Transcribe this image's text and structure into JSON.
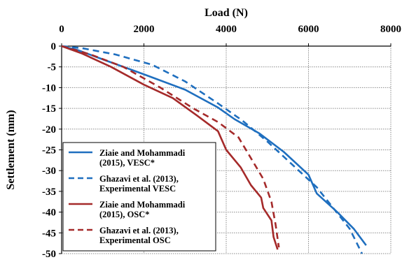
{
  "chart_data": {
    "type": "line",
    "xlabel": "Load (N)",
    "ylabel": "Settlement (mm)",
    "xlim": [
      0,
      8000
    ],
    "ylim": [
      -50,
      0
    ],
    "x_axis_position": "top",
    "grid": true,
    "legend_position": "bottom-left",
    "x_ticks": [
      "0",
      "2000",
      "4000",
      "6000",
      "8000"
    ],
    "y_ticks": [
      "0",
      "-5",
      "-10",
      "-15",
      "-20",
      "-25",
      "-30",
      "-35",
      "-40",
      "-45",
      "-50"
    ],
    "series": [
      {
        "name": [
          "Ziaie and Mohammadi",
          "(2015), VESC*"
        ],
        "color": "#1f6fbf",
        "dash": "solid",
        "points": [
          [
            0,
            0
          ],
          [
            400,
            -1
          ],
          [
            1000,
            -3.2
          ],
          [
            2000,
            -6.8
          ],
          [
            3000,
            -10.5
          ],
          [
            3800,
            -14.8
          ],
          [
            4200,
            -17.6
          ],
          [
            4800,
            -21
          ],
          [
            5400,
            -25.5
          ],
          [
            6000,
            -31
          ],
          [
            6200,
            -35.5
          ],
          [
            6700,
            -40
          ],
          [
            7100,
            -44
          ],
          [
            7400,
            -48
          ]
        ]
      },
      {
        "name": [
          "Ghazavi et al. (2013),",
          "Experimental VESC"
        ],
        "color": "#1f6fbf",
        "dash": "dashed",
        "points": [
          [
            0,
            0
          ],
          [
            500,
            -0.5
          ],
          [
            1300,
            -2
          ],
          [
            2200,
            -4.5
          ],
          [
            3000,
            -8.5
          ],
          [
            3800,
            -13.8
          ],
          [
            4400,
            -18
          ],
          [
            5000,
            -23
          ],
          [
            5600,
            -28.5
          ],
          [
            6200,
            -34
          ],
          [
            6600,
            -39
          ],
          [
            7000,
            -44
          ],
          [
            7300,
            -50
          ]
        ]
      },
      {
        "name": [
          "Ziaie and Mohammadi",
          "(2015), OSC*"
        ],
        "color": "#a52a2a",
        "dash": "solid",
        "points": [
          [
            0,
            0
          ],
          [
            500,
            -1.8
          ],
          [
            1200,
            -5
          ],
          [
            2000,
            -9.3
          ],
          [
            2700,
            -12.5
          ],
          [
            3300,
            -16.8
          ],
          [
            3800,
            -20.5
          ],
          [
            4000,
            -25
          ],
          [
            4350,
            -29.2
          ],
          [
            4600,
            -33.5
          ],
          [
            4850,
            -36.5
          ],
          [
            4900,
            -39
          ],
          [
            5100,
            -42
          ],
          [
            5150,
            -46
          ],
          [
            5250,
            -49
          ]
        ]
      },
      {
        "name": [
          "Ghazavi et al. (2013),",
          "Experimental OSC"
        ],
        "color": "#a52a2a",
        "dash": "dashed",
        "points": [
          [
            0,
            0
          ],
          [
            700,
            -2
          ],
          [
            1500,
            -5
          ],
          [
            2400,
            -10
          ],
          [
            3200,
            -15
          ],
          [
            3800,
            -18.3
          ],
          [
            4300,
            -22
          ],
          [
            4600,
            -27
          ],
          [
            4900,
            -32
          ],
          [
            5100,
            -37.5
          ],
          [
            5200,
            -43
          ],
          [
            5280,
            -48.5
          ]
        ]
      }
    ]
  }
}
